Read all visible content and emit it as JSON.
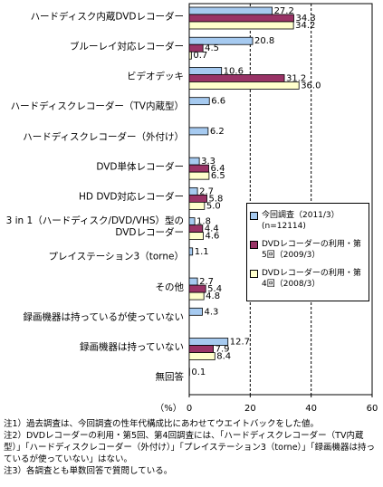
{
  "chart_data": {
    "type": "hbar",
    "categories": [
      "ハードディスク内蔵DVDレコーダー",
      "ブルーレイ対応レコーダー",
      "ビデオデッキ",
      "ハードディスクレコーダー（TV内蔵型）",
      "ハードディスクレコーダー（外付け）",
      "DVD単体レコーダー",
      "HD DVD対応レコーダー",
      "3 in 1（ハードディスク/DVD/VHS）型のDVDレコーダー",
      "プレイステーション3（torne）",
      "その他",
      "録画機器は持っているが使っていない",
      "録画機器は持っていない",
      "無回答"
    ],
    "series": [
      {
        "name": "今回調査（2011/3）(n=12114)",
        "color": "#a6caf0",
        "values": [
          27.2,
          20.8,
          10.6,
          6.6,
          6.2,
          3.3,
          2.7,
          1.8,
          1.1,
          2.7,
          4.3,
          12.7,
          0.1
        ],
        "value_labels": [
          "27.2",
          "20.8",
          "10.6",
          "6.6",
          "6.2",
          "3.3",
          "2.7",
          "1.8",
          "1.1",
          "2.7",
          "4.3",
          "12.7",
          "0.1"
        ]
      },
      {
        "name": "DVDレコーダーの利用・第5回（2009/3）",
        "color": "#993366",
        "values": [
          34.3,
          4.5,
          31.2,
          null,
          null,
          6.4,
          5.8,
          4.4,
          null,
          5.4,
          null,
          7.9,
          null
        ],
        "value_labels": [
          "34.3",
          "4.5",
          "31.2",
          null,
          null,
          "6.4",
          "5.8",
          "4.4",
          null,
          "5.4",
          null,
          "7.9",
          null
        ]
      },
      {
        "name": "DVDレコーダーの利用・第4回（2008/3）",
        "color": "#ffffcc",
        "values": [
          34.2,
          0.7,
          36.0,
          null,
          null,
          6.5,
          5.0,
          4.6,
          null,
          4.8,
          null,
          8.4,
          null
        ],
        "value_labels": [
          "34.2",
          "0.7",
          "36.0",
          null,
          null,
          "6.5",
          "5.0",
          "4.6",
          null,
          "4.8",
          null,
          "8.4",
          null
        ]
      }
    ],
    "x_label": "（%）",
    "xlim": [
      0,
      60
    ],
    "xticks": [
      0,
      20,
      40,
      60
    ],
    "grid": true,
    "notes": [
      "注1）過去調査は、今回調査の性年代構成比にあわせてウエイトバックをした値。",
      "注2）DVDレコーダーの利用・第5回、第4回調査には、「ハードディスクレコーダー（TV内蔵型）」「ハードディスクレコーダー（外付け）」「プレイステーション3（torne）」「録画機器は持っているが使っていない」はない。",
      "注3）各調査とも単数回答で質問している。"
    ]
  }
}
